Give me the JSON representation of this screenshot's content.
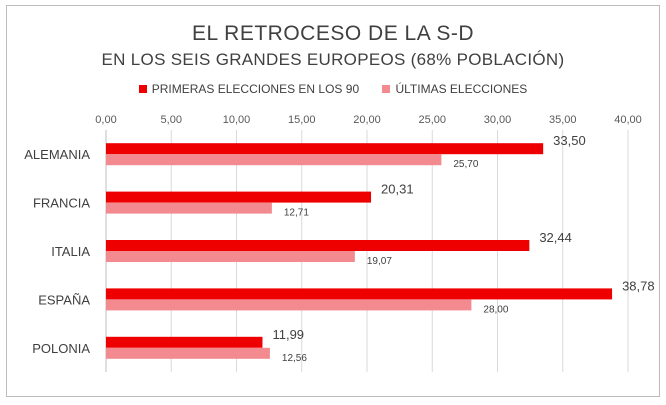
{
  "chart_data": {
    "type": "bar",
    "orientation": "horizontal",
    "title": "EL RETROCESO DE LA S-D",
    "subtitle": "EN LOS SEIS GRANDES EUROPEOS (68% POBLACIÓN)",
    "categories": [
      "ALEMANIA",
      "FRANCIA",
      "ITALIA",
      "ESPAÑA",
      "POLONIA"
    ],
    "series": [
      {
        "name": "PRIMERAS ELECCIONES EN LOS 90",
        "color": "#ee0000",
        "values": [
          33.5,
          20.31,
          32.44,
          38.78,
          11.99
        ],
        "labels": [
          "33,50",
          "20,31",
          "32,44",
          "38,78",
          "11,99"
        ]
      },
      {
        "name": "ÚLTIMAS ELECCIONES",
        "color": "#f28a8f",
        "values": [
          25.7,
          12.71,
          19.07,
          28.0,
          12.56
        ],
        "labels": [
          "25,70",
          "12,71",
          "19,07",
          "28,00",
          "12,56"
        ]
      }
    ],
    "xlim": [
      0,
      40
    ],
    "xticks": [
      "0,00",
      "5,00",
      "10,00",
      "15,00",
      "20,00",
      "25,00",
      "30,00",
      "35,00",
      "40,00"
    ],
    "x_axis_position": "top",
    "grid": true,
    "legend_position": "top"
  }
}
